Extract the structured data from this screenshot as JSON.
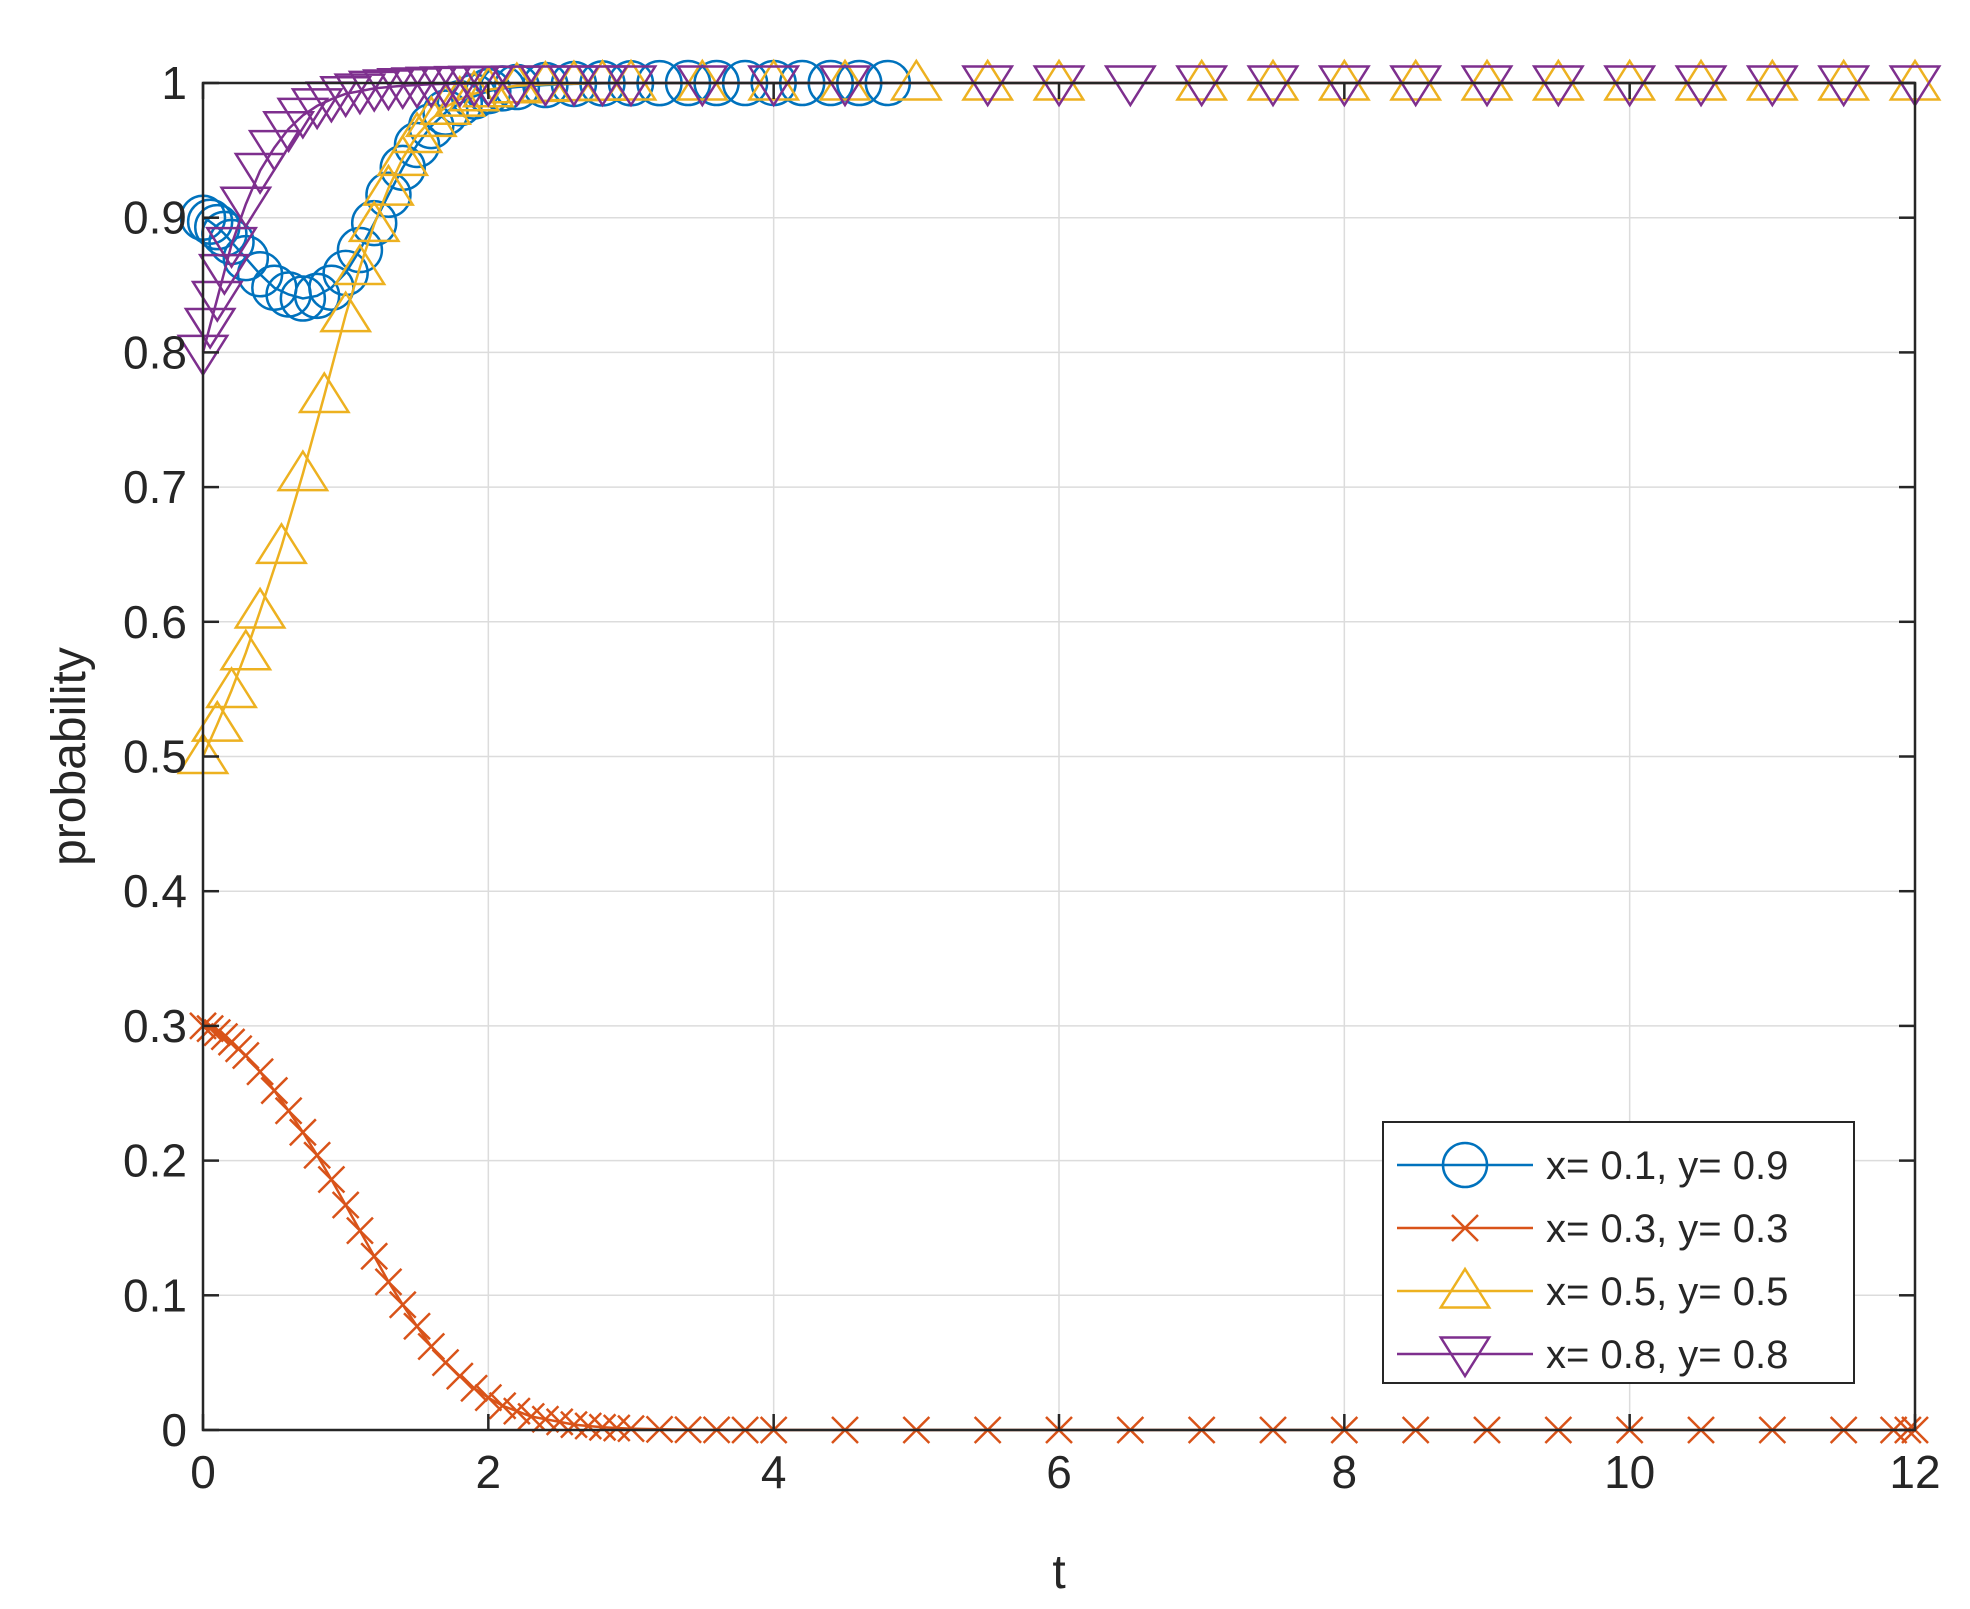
{
  "chart_data": {
    "type": "line",
    "title": "",
    "xlabel": "t",
    "ylabel": "probability",
    "xlim": [
      0,
      12
    ],
    "ylim": [
      0,
      1
    ],
    "grid": true,
    "legend_position": "bottom-right",
    "x_ticks": [
      0,
      2,
      4,
      6,
      8,
      10,
      12
    ],
    "x_tick_labels": [
      "0",
      "2",
      "4",
      "6",
      "8",
      "10",
      "12"
    ],
    "y_ticks": [
      0,
      0.1,
      0.2,
      0.3,
      0.4,
      0.5,
      0.6,
      0.7,
      0.8,
      0.9,
      1
    ],
    "y_tick_labels": [
      "0",
      "0.1",
      "0.2",
      "0.3",
      "0.4",
      "0.5",
      "0.6",
      "0.7",
      "0.8",
      "0.9",
      "1"
    ],
    "series": [
      {
        "name": "x= 0.1, y= 0.9",
        "color": "#0072BD",
        "marker": "circle",
        "x": [
          0,
          0.05,
          0.1,
          0.15,
          0.2,
          0.3,
          0.4,
          0.5,
          0.6,
          0.7,
          0.8,
          0.9,
          1.0,
          1.1,
          1.2,
          1.3,
          1.4,
          1.5,
          1.6,
          1.7,
          1.8,
          1.9,
          2.0,
          2.1,
          2.2,
          2.4,
          2.6,
          2.8,
          3.0,
          3.2,
          3.4,
          3.6,
          3.8,
          4.0,
          4.2,
          4.4,
          4.6,
          4.8
        ],
        "y": [
          0.9,
          0.897,
          0.893,
          0.888,
          0.882,
          0.87,
          0.858,
          0.848,
          0.843,
          0.84,
          0.842,
          0.848,
          0.859,
          0.876,
          0.896,
          0.917,
          0.937,
          0.954,
          0.968,
          0.978,
          0.985,
          0.99,
          0.994,
          0.996,
          0.997,
          0.9985,
          0.9993,
          0.9997,
          0.9998,
          0.9999,
          1,
          1,
          1,
          1,
          1,
          1,
          1,
          1
        ]
      },
      {
        "name": "x= 0.3, y= 0.3",
        "color": "#D95319",
        "marker": "x",
        "x": [
          0,
          0.05,
          0.1,
          0.15,
          0.2,
          0.25,
          0.3,
          0.4,
          0.5,
          0.6,
          0.7,
          0.8,
          0.9,
          1.0,
          1.1,
          1.2,
          1.3,
          1.4,
          1.5,
          1.6,
          1.7,
          1.8,
          1.9,
          2.0,
          2.1,
          2.2,
          2.3,
          2.4,
          2.5,
          2.6,
          2.7,
          2.8,
          2.9,
          3.0,
          3.2,
          3.4,
          3.6,
          3.8,
          4.0,
          4.5,
          5.0,
          5.5,
          6.0,
          6.5,
          7.0,
          7.5,
          8.0,
          8.5,
          9.0,
          9.5,
          10.0,
          10.5,
          11.0,
          11.5,
          11.85,
          11.95,
          12.0
        ],
        "y": [
          0.3,
          0.298,
          0.295,
          0.292,
          0.288,
          0.283,
          0.278,
          0.266,
          0.252,
          0.237,
          0.221,
          0.204,
          0.186,
          0.167,
          0.148,
          0.129,
          0.11,
          0.093,
          0.077,
          0.062,
          0.05,
          0.04,
          0.031,
          0.024,
          0.018,
          0.014,
          0.01,
          0.008,
          0.006,
          0.004,
          0.003,
          0.002,
          0.0015,
          0.001,
          0.0005,
          0.0002,
          0.0001,
          0,
          0,
          0,
          0,
          0,
          0,
          0,
          0,
          0,
          0,
          0,
          0,
          0,
          0,
          0,
          0,
          0,
          0,
          0,
          0
        ]
      },
      {
        "name": "x= 0.5, y= 0.5",
        "color": "#EDB120",
        "marker": "triangle-up",
        "x": [
          0,
          0.1,
          0.2,
          0.3,
          0.4,
          0.55,
          0.7,
          0.85,
          1.0,
          1.1,
          1.2,
          1.3,
          1.4,
          1.5,
          1.6,
          1.7,
          1.8,
          1.9,
          2.0,
          2.2,
          2.4,
          2.6,
          2.8,
          3.0,
          3.5,
          4.0,
          4.5,
          5.0,
          5.5,
          6.0,
          7.0,
          7.5,
          8.0,
          8.5,
          9.0,
          9.5,
          10.0,
          10.5,
          11.0,
          11.5,
          12.0
        ],
        "y": [
          0.5,
          0.524,
          0.549,
          0.577,
          0.608,
          0.656,
          0.71,
          0.768,
          0.828,
          0.863,
          0.895,
          0.922,
          0.944,
          0.961,
          0.973,
          0.982,
          0.988,
          0.992,
          0.995,
          0.998,
          0.999,
          0.9995,
          0.9998,
          1,
          1,
          1,
          1,
          1,
          1,
          1,
          1,
          1,
          1,
          1,
          1,
          1,
          1,
          1,
          1,
          1,
          1
        ]
      },
      {
        "name": "x= 0.8, y= 0.8",
        "color": "#7E2F8E",
        "marker": "triangle-down",
        "x": [
          0,
          0.05,
          0.1,
          0.15,
          0.2,
          0.3,
          0.4,
          0.5,
          0.6,
          0.7,
          0.8,
          0.9,
          1.0,
          1.1,
          1.2,
          1.3,
          1.4,
          1.5,
          1.6,
          1.7,
          1.8,
          1.9,
          2.0,
          2.2,
          2.4,
          2.6,
          2.8,
          3.0,
          3.5,
          4.0,
          4.5,
          5.5,
          6.0,
          6.5,
          7.0,
          7.5,
          8.0,
          8.5,
          9.0,
          9.5,
          10.0,
          10.5,
          11.0,
          11.5,
          12.0
        ],
        "y": [
          0.8,
          0.82,
          0.84,
          0.86,
          0.88,
          0.91,
          0.935,
          0.952,
          0.966,
          0.976,
          0.983,
          0.988,
          0.992,
          0.994,
          0.996,
          0.997,
          0.998,
          0.9985,
          0.999,
          0.9993,
          0.9995,
          0.9997,
          0.9998,
          0.9999,
          1,
          1,
          1,
          1,
          1,
          1,
          1,
          1,
          1,
          1,
          1,
          1,
          1,
          1,
          1,
          1,
          1,
          1,
          1,
          1,
          1
        ]
      }
    ]
  }
}
